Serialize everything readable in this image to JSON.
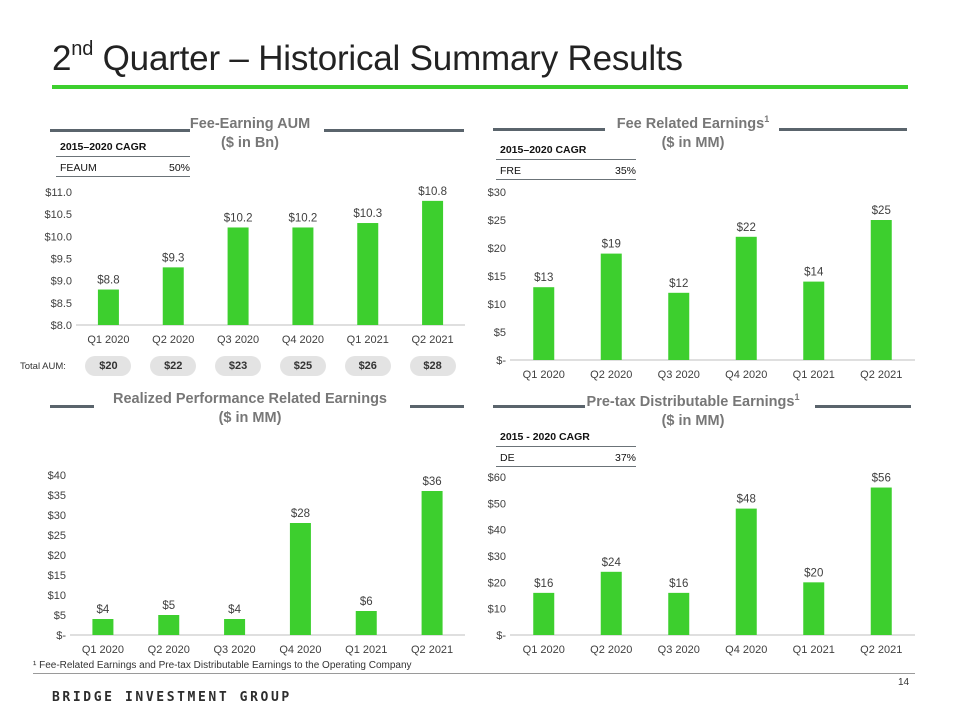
{
  "header": {
    "title_sup": "nd",
    "title_prefix": "2",
    "title_rest": " Quarter – Historical Summary Results"
  },
  "colors": {
    "accent": "#3dcf2e",
    "bar": "#3dcf2e",
    "rule": "#5a646c",
    "text": "#404040"
  },
  "panels": {
    "feaum": {
      "title_line1": "Fee-Earning AUM",
      "title_line2": "($ in Bn)",
      "cagr_header": "2015–2020 CAGR",
      "cagr_label": "FEAUM",
      "cagr_value": "50%",
      "total_aum_label": "Total AUM:",
      "total_aum_values": [
        "$20",
        "$22",
        "$23",
        "$25",
        "$26",
        "$28"
      ]
    },
    "fre": {
      "title_line1": "Fee Related Earnings",
      "title_sup": "1",
      "title_line2": "($ in MM)",
      "cagr_header": "2015–2020 CAGR",
      "cagr_label": "FRE",
      "cagr_value": "35%"
    },
    "rpre": {
      "title_line1": "Realized Performance Related Earnings",
      "title_line2": "($ in MM)"
    },
    "de": {
      "title_line1": "Pre-tax Distributable Earnings",
      "title_sup": "1",
      "title_line2": "($ in MM)",
      "cagr_header": "2015 - 2020 CAGR",
      "cagr_label": "DE",
      "cagr_value": "37%"
    }
  },
  "chart_data": [
    {
      "id": "feaum",
      "type": "bar",
      "title": "Fee-Earning AUM ($ in Bn)",
      "categories": [
        "Q1 2020",
        "Q2 2020",
        "Q3 2020",
        "Q4 2020",
        "Q1 2021",
        "Q2 2021"
      ],
      "values": [
        8.8,
        9.3,
        10.2,
        10.2,
        10.3,
        10.8
      ],
      "value_labels": [
        "$8.8",
        "$9.3",
        "$10.2",
        "$10.2",
        "$10.3",
        "$10.8"
      ],
      "ylim": [
        8.0,
        11.0
      ],
      "yticks": [
        8.0,
        8.5,
        9.0,
        9.5,
        10.0,
        10.5,
        11.0
      ],
      "ytick_labels": [
        "$8.0",
        "$8.5",
        "$9.0",
        "$9.5",
        "$10.0",
        "$10.5",
        "$11.0"
      ]
    },
    {
      "id": "fre",
      "type": "bar",
      "title": "Fee Related Earnings ($ in MM)",
      "categories": [
        "Q1 2020",
        "Q2 2020",
        "Q3 2020",
        "Q4 2020",
        "Q1 2021",
        "Q2 2021"
      ],
      "values": [
        13,
        19,
        12,
        22,
        14,
        25
      ],
      "value_labels": [
        "$13",
        "$19",
        "$12",
        "$22",
        "$14",
        "$25"
      ],
      "ylim": [
        0,
        30
      ],
      "yticks": [
        0,
        5,
        10,
        15,
        20,
        25,
        30
      ],
      "ytick_labels": [
        "$-",
        "$5",
        "$10",
        "$15",
        "$20",
        "$25",
        "$30"
      ]
    },
    {
      "id": "rpre",
      "type": "bar",
      "title": "Realized Performance Related Earnings ($ in MM)",
      "categories": [
        "Q1 2020",
        "Q2 2020",
        "Q3 2020",
        "Q4 2020",
        "Q1 2021",
        "Q2 2021"
      ],
      "values": [
        4,
        5,
        4,
        28,
        6,
        36
      ],
      "value_labels": [
        "$4",
        "$5",
        "$4",
        "$28",
        "$6",
        "$36"
      ],
      "ylim": [
        0,
        40
      ],
      "yticks": [
        0,
        5,
        10,
        15,
        20,
        25,
        30,
        35,
        40
      ],
      "ytick_labels": [
        "$-",
        "$5",
        "$10",
        "$15",
        "$20",
        "$25",
        "$30",
        "$35",
        "$40"
      ]
    },
    {
      "id": "de",
      "type": "bar",
      "title": "Pre-tax Distributable Earnings ($ in MM)",
      "categories": [
        "Q1 2020",
        "Q2 2020",
        "Q3 2020",
        "Q4 2020",
        "Q1 2021",
        "Q2 2021"
      ],
      "values": [
        16,
        24,
        16,
        48,
        20,
        56
      ],
      "value_labels": [
        "$16",
        "$24",
        "$16",
        "$48",
        "$20",
        "$56"
      ],
      "ylim": [
        0,
        60
      ],
      "yticks": [
        0,
        10,
        20,
        30,
        40,
        50,
        60
      ],
      "ytick_labels": [
        "$-",
        "$10",
        "$20",
        "$30",
        "$40",
        "$50",
        "$60"
      ]
    }
  ],
  "footer": {
    "footnote": "¹ Fee-Related Earnings and Pre-tax Distributable Earnings to the Operating Company",
    "page_number": "14",
    "logo": "BRIDGE INVESTMENT GROUP"
  }
}
